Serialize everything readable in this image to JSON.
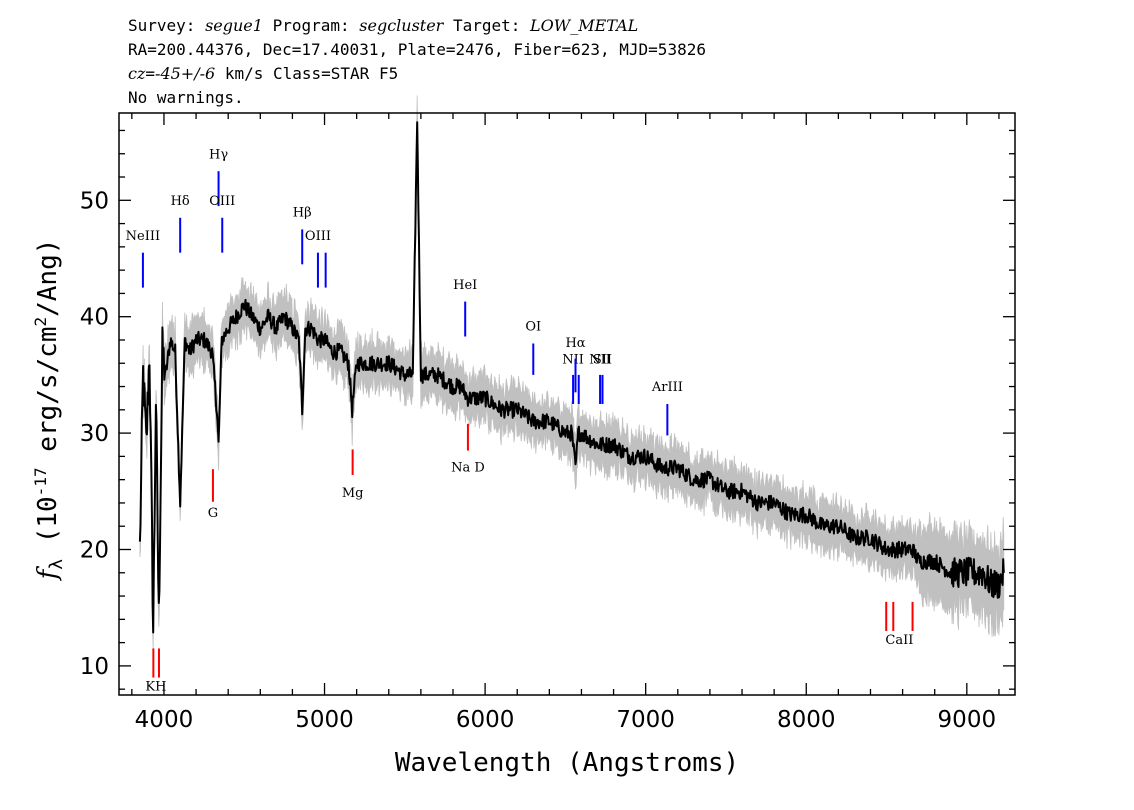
{
  "header": {
    "l1_survey_prefix": "Survey: ",
    "l1_survey": "segue1",
    "l1_program_prefix": " Program: ",
    "l1_program": "segcluster",
    "l1_target_prefix": " Target: ",
    "l1_target": "LOW_METAL",
    "line2": "RA=200.44376, Dec=17.40031, Plate=2476, Fiber=623, MJD=53826",
    "l3_cz": "cz",
    "l3_eq": "=",
    "l3_val": "-45+/-6",
    "l3_rest": " km/s Class=STAR F5",
    "line4": "No warnings."
  },
  "chart_data": {
    "type": "line",
    "title": "",
    "xlabel": "Wavelength (Angstroms)",
    "ylabel_main": "f",
    "ylabel_sub": "λ",
    "ylabel_rest_a": " (10",
    "ylabel_exp": "-17",
    "ylabel_rest_b": " erg/s/cm",
    "ylabel_exp2": "2",
    "ylabel_rest_c": "/Ang)",
    "xlim": [
      3720,
      9300
    ],
    "ylim": [
      7.5,
      57.5
    ],
    "xticks": [
      4000,
      5000,
      6000,
      7000,
      8000,
      9000
    ],
    "yticks": [
      10,
      20,
      30,
      40,
      50
    ],
    "grid": false,
    "series": [
      {
        "color": "#000000",
        "error_color": "#c0c0c0",
        "x": [
          3850,
          3870,
          3890,
          3910,
          3933,
          3950,
          3968,
          3990,
          4010,
          4040,
          4070,
          4101,
          4130,
          4160,
          4200,
          4250,
          4300,
          4330,
          4340,
          4360,
          4400,
          4450,
          4500,
          4550,
          4600,
          4650,
          4700,
          4750,
          4800,
          4840,
          4861,
          4880,
          4920,
          4960,
          5000,
          5050,
          5100,
          5150,
          5172,
          5200,
          5250,
          5300,
          5400,
          5500,
          5550,
          5577,
          5600,
          5650,
          5700,
          5800,
          5850,
          5893,
          5950,
          6000,
          6100,
          6200,
          6300,
          6400,
          6500,
          6540,
          6563,
          6580,
          6600,
          6700,
          6800,
          6900,
          7000,
          7100,
          7200,
          7300,
          7400,
          7500,
          7600,
          7700,
          7800,
          7900,
          8000,
          8100,
          8200,
          8300,
          8400,
          8498,
          8542,
          8600,
          8662,
          8700,
          8800,
          8900,
          9000,
          9100,
          9150,
          9200,
          9230
        ],
        "y": [
          20,
          35,
          29,
          37,
          13,
          33,
          14,
          37,
          35,
          38,
          37,
          24,
          38,
          37,
          38,
          38,
          37,
          32,
          29,
          38,
          39,
          40,
          41,
          40,
          39,
          40,
          39,
          40,
          39,
          38,
          32,
          39,
          39,
          38,
          38,
          37,
          37,
          36,
          32,
          36,
          36,
          36,
          36,
          35,
          35,
          57,
          35,
          35,
          35,
          34,
          34,
          33,
          33,
          33,
          32,
          32,
          31,
          31,
          30,
          30,
          27,
          30,
          30,
          29,
          29,
          28,
          28,
          27,
          27,
          26,
          26,
          25,
          25,
          24,
          24,
          23,
          23,
          22,
          22,
          21,
          21,
          20,
          20,
          20,
          20,
          19,
          19,
          18,
          18,
          18,
          17,
          17,
          18
        ]
      }
    ],
    "annotations_blue": [
      {
        "label": "NeIII",
        "x": 3869,
        "y_top": 45.5,
        "y_bot": 42.5,
        "label_y": 46.6
      },
      {
        "label": "Hδ",
        "x": 4101,
        "y_top": 48.5,
        "y_bot": 45.5,
        "label_y": 49.6
      },
      {
        "label": "Hγ",
        "x": 4340,
        "y_top": 52.5,
        "y_bot": 49.5,
        "label_y": 53.6
      },
      {
        "label": "OIII",
        "x": 4363,
        "y_top": 48.5,
        "y_bot": 45.5,
        "label_y": 49.6
      },
      {
        "label": "Hβ",
        "x": 4861,
        "y_top": 47.5,
        "y_bot": 44.5,
        "label_y": 48.6
      },
      {
        "label": "OIII",
        "x": 4959,
        "y_top": 45.5,
        "y_bot": 42.5,
        "label_y": 46.6
      },
      {
        "label": "",
        "x": 5007,
        "y_top": 45.5,
        "y_bot": 42.5,
        "label_y": 46.6
      },
      {
        "label": "HeI",
        "x": 5876,
        "y_top": 41.3,
        "y_bot": 38.3,
        "label_y": 42.4
      },
      {
        "label": "OI",
        "x": 6300,
        "y_top": 37.7,
        "y_bot": 35.0,
        "label_y": 38.8
      },
      {
        "label": "NII",
        "x": 6548,
        "y_top": 35.0,
        "y_bot": 32.5,
        "label_y": 36.0
      },
      {
        "label": "Hα",
        "x": 6563,
        "y_top": 36.4,
        "y_bot": 33.5,
        "label_y": 37.4
      },
      {
        "label": "",
        "x": 6583,
        "y_top": 35.0,
        "y_bot": 32.5,
        "label_y": 36.0
      },
      {
        "label": "NII",
        "x": 6716,
        "y_top": 35.0,
        "y_bot": 32.5,
        "label_y": 36.0
      },
      {
        "label": "SII",
        "x": 6731,
        "y_top": 35.0,
        "y_bot": 32.5,
        "label_y": 36.0
      },
      {
        "label": "ArIII",
        "x": 7135,
        "y_top": 32.5,
        "y_bot": 29.8,
        "label_y": 33.6
      }
    ],
    "annotations_red": [
      {
        "label": "G",
        "x": 4305,
        "y_top": 26.9,
        "y_bot": 24.1,
        "label_y": 22.8
      },
      {
        "label": "Mg",
        "x": 5175,
        "y_top": 28.6,
        "y_bot": 26.4,
        "label_y": 24.5
      },
      {
        "label": "Na D",
        "x": 5893,
        "y_top": 30.8,
        "y_bot": 28.5,
        "label_y": 26.7
      },
      {
        "label": "KH",
        "x": 3950,
        "y_top": 11.5,
        "y_bot": 9.0,
        "label_y": 7.9
      },
      {
        "label": "CaII",
        "x": 8580,
        "y_top": 15.5,
        "y_bot": 13.0,
        "label_y": 11.9
      }
    ],
    "annotations_red_extra_x": [
      3934,
      3969,
      8498,
      8542,
      8662
    ]
  }
}
